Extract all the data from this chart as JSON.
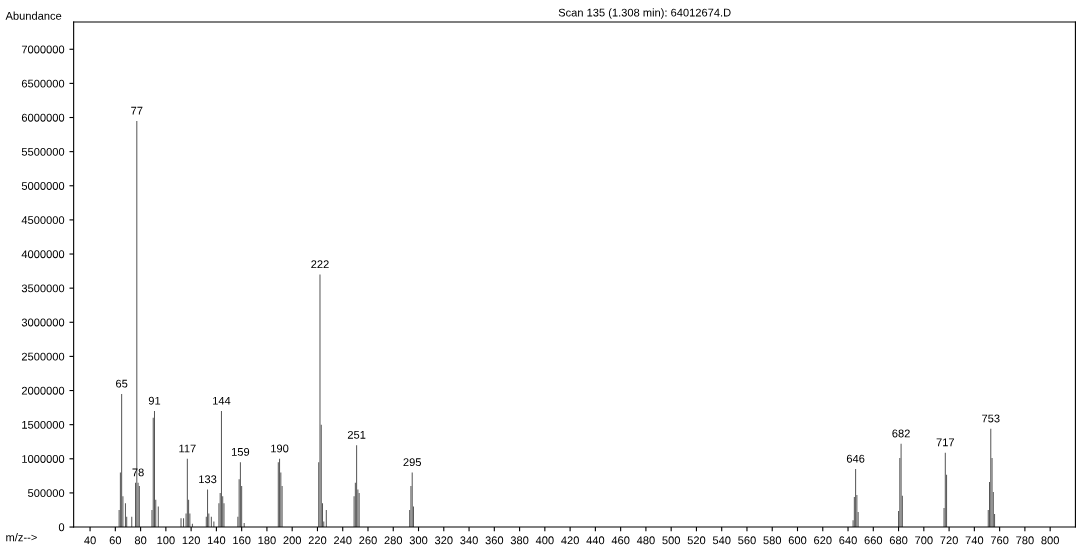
{
  "chart_data": {
    "type": "bar",
    "title": "Scan 135 (1.308 min): 64012674.D",
    "xlabel": "m/z-->",
    "ylabel": "Abundance",
    "x": [
      63,
      64,
      65,
      66,
      68,
      69,
      73,
      76,
      77,
      78,
      79,
      89,
      90,
      91,
      92,
      94,
      112,
      114,
      116,
      117,
      118,
      119,
      121,
      132,
      133,
      134,
      136,
      138,
      142,
      143,
      144,
      145,
      146,
      157,
      158,
      159,
      160,
      162,
      189,
      190,
      191,
      192,
      221,
      222,
      223,
      224,
      225,
      227,
      249,
      250,
      251,
      252,
      253,
      293,
      294,
      295,
      296,
      644,
      645,
      646,
      647,
      648,
      680,
      681,
      682,
      683,
      716,
      717,
      718,
      751,
      752,
      753,
      754,
      755,
      756
    ],
    "values": [
      250000,
      800000,
      1950000,
      450000,
      350000,
      150000,
      150000,
      650000,
      5950000,
      650000,
      600000,
      250000,
      1600000,
      1700000,
      400000,
      300000,
      130000,
      130000,
      200000,
      1000000,
      400000,
      200000,
      50000,
      150000,
      550000,
      200000,
      150000,
      80000,
      350000,
      500000,
      1700000,
      450000,
      350000,
      150000,
      700000,
      950000,
      600000,
      60000,
      950000,
      1000000,
      800000,
      600000,
      950000,
      3700000,
      1500000,
      350000,
      80000,
      250000,
      450000,
      650000,
      1200000,
      550000,
      500000,
      250000,
      600000,
      800000,
      300000,
      100000,
      440000,
      850000,
      470000,
      220000,
      235000,
      1010000,
      1220000,
      460000,
      280000,
      1090000,
      765000,
      250000,
      660000,
      1440000,
      1010000,
      515000,
      190000
    ],
    "color": "#555555",
    "xlim": [
      27,
      820
    ],
    "ylim": [
      0,
      7400000
    ],
    "xticks": [
      40,
      60,
      80,
      100,
      120,
      140,
      160,
      180,
      200,
      220,
      240,
      260,
      280,
      300,
      320,
      340,
      360,
      380,
      400,
      420,
      440,
      460,
      480,
      500,
      520,
      540,
      560,
      580,
      600,
      620,
      640,
      660,
      680,
      700,
      720,
      740,
      760,
      780,
      800
    ],
    "yticks": [
      0,
      500000,
      1000000,
      1500000,
      2000000,
      2500000,
      3000000,
      3500000,
      4000000,
      4500000,
      5000000,
      5500000,
      6000000,
      6500000,
      7000000
    ],
    "grid": false,
    "annotations": [
      {
        "text": "65",
        "x": 65,
        "y": 1950000
      },
      {
        "text": "77",
        "x": 77,
        "y": 5950000
      },
      {
        "text": "78",
        "x": 78,
        "y": 650000
      },
      {
        "text": "91",
        "x": 91,
        "y": 1700000
      },
      {
        "text": "117",
        "x": 117,
        "y": 1000000
      },
      {
        "text": "133",
        "x": 133,
        "y": 550000
      },
      {
        "text": "144",
        "x": 144,
        "y": 1700000
      },
      {
        "text": "159",
        "x": 159,
        "y": 950000
      },
      {
        "text": "190",
        "x": 190,
        "y": 1000000
      },
      {
        "text": "222",
        "x": 222,
        "y": 3700000
      },
      {
        "text": "251",
        "x": 251,
        "y": 1200000
      },
      {
        "text": "295",
        "x": 295,
        "y": 800000
      },
      {
        "text": "646",
        "x": 646,
        "y": 850000
      },
      {
        "text": "682",
        "x": 682,
        "y": 1220000
      },
      {
        "text": "717",
        "x": 717,
        "y": 1090000
      },
      {
        "text": "753",
        "x": 753,
        "y": 1440000
      }
    ]
  }
}
